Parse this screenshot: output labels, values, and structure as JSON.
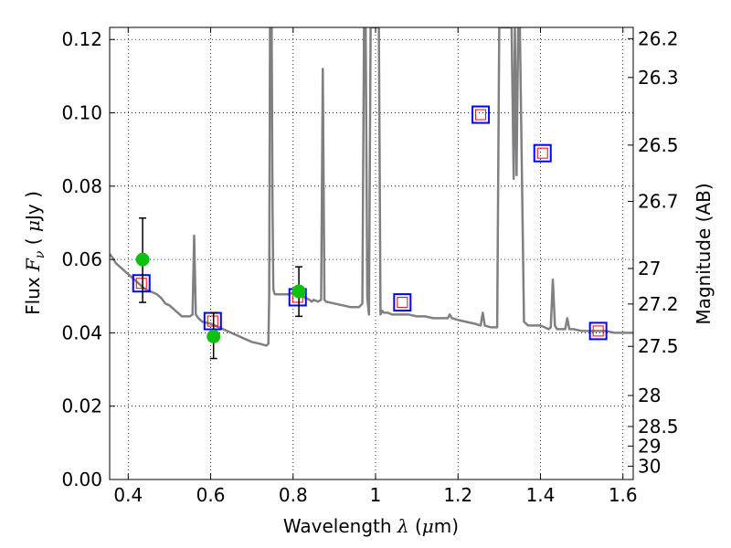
{
  "chart_data": {
    "type": "line",
    "title": "",
    "xlabel": {
      "text": "Wavelength",
      "symbol": "λ",
      "unit_open": " (",
      "unit_mu": "μ",
      "unit_rest": "m)"
    },
    "ylabel": {
      "text": "Flux",
      "symbol": "F",
      "symbol_sub": "ν",
      "unit_open": " ( ",
      "unit_mu": "μ",
      "unit_rest": "Jy )"
    },
    "y2label": "Magnitude (AB)",
    "xlim": [
      0.355,
      1.625
    ],
    "ylim": [
      0.0,
      0.1233
    ],
    "grid": true,
    "x_ticks": [
      0.4,
      0.6,
      0.8,
      1.0,
      1.2,
      1.4,
      1.6
    ],
    "x_tick_labels": [
      "0.4",
      "0.6",
      "0.8",
      "1",
      "1.2",
      "1.4",
      "1.6"
    ],
    "y_ticks": [
      0.0,
      0.02,
      0.04,
      0.06,
      0.08,
      0.1,
      0.12
    ],
    "y_tick_labels": [
      "0.00",
      "0.02",
      "0.04",
      "0.06",
      "0.08",
      "0.10",
      "0.12"
    ],
    "y2_ticks": [
      26.2,
      26.3,
      26.5,
      26.7,
      27,
      27.2,
      27.5,
      28,
      28.5,
      29,
      30
    ],
    "y2_tick_labels": [
      "26.2",
      "26.3",
      "26.5",
      "26.7",
      "27",
      "27.2",
      "27.5",
      "28",
      "28.5",
      "29",
      "30"
    ],
    "colors": {
      "spectrum": "#808080",
      "observed": "#10c010",
      "model_box": "#0000ff",
      "model_inner": "#ff0000",
      "errorbar": "#000000"
    },
    "series": [
      {
        "kind": "spectrum",
        "x": [
          0.355,
          0.362,
          0.37,
          0.38,
          0.39,
          0.4,
          0.41,
          0.42,
          0.43,
          0.44,
          0.45,
          0.46,
          0.47,
          0.48,
          0.49,
          0.5,
          0.51,
          0.52,
          0.53,
          0.54,
          0.55,
          0.556,
          0.56,
          0.564,
          0.57,
          0.58,
          0.6,
          0.62,
          0.64,
          0.66,
          0.68,
          0.7,
          0.72,
          0.735,
          0.74,
          0.742,
          0.744,
          0.746,
          0.748,
          0.75,
          0.752,
          0.754,
          0.756,
          0.76,
          0.77,
          0.78,
          0.79,
          0.8,
          0.81,
          0.82,
          0.83,
          0.84,
          0.845,
          0.85,
          0.86,
          0.868,
          0.872,
          0.876,
          0.88,
          0.9,
          0.92,
          0.94,
          0.96,
          0.968,
          0.972,
          0.976,
          0.98,
          0.984,
          0.988,
          0.992,
          0.996,
          1.0,
          1.004,
          1.008,
          1.012,
          1.016,
          1.02,
          1.03,
          1.04,
          1.06,
          1.08,
          1.1,
          1.12,
          1.14,
          1.16,
          1.175,
          1.18,
          1.185,
          1.2,
          1.22,
          1.24,
          1.255,
          1.26,
          1.265,
          1.28,
          1.295,
          1.3,
          1.302,
          1.31,
          1.32,
          1.33,
          1.335,
          1.338,
          1.342,
          1.346,
          1.35,
          1.36,
          1.37,
          1.38,
          1.39,
          1.4,
          1.41,
          1.42,
          1.425,
          1.43,
          1.435,
          1.44,
          1.45,
          1.46,
          1.465,
          1.47,
          1.475,
          1.48,
          1.5,
          1.52,
          1.54,
          1.56,
          1.58,
          1.6,
          1.625
        ],
        "y": [
          0.0615,
          0.0605,
          0.059,
          0.058,
          0.057,
          0.056,
          0.055,
          0.054,
          0.053,
          0.052,
          0.0515,
          0.051,
          0.0505,
          0.0495,
          0.048,
          0.0475,
          0.0465,
          0.0455,
          0.0445,
          0.0445,
          0.0445,
          0.045,
          0.0665,
          0.045,
          0.044,
          0.043,
          0.0425,
          0.0415,
          0.0405,
          0.0395,
          0.0385,
          0.0375,
          0.037,
          0.0365,
          0.037,
          0.05,
          0.1233,
          0.1233,
          0.1233,
          0.075,
          0.052,
          0.051,
          0.0505,
          0.0505,
          0.0505,
          0.0505,
          0.0505,
          0.051,
          0.0505,
          0.0505,
          0.0495,
          0.049,
          0.0485,
          0.049,
          0.0485,
          0.049,
          0.112,
          0.049,
          0.0485,
          0.048,
          0.0475,
          0.047,
          0.047,
          0.048,
          0.1233,
          0.1233,
          0.0495,
          0.045,
          0.1233,
          0.1233,
          0.1233,
          0.1233,
          0.1233,
          0.1233,
          0.045,
          0.046,
          0.0455,
          0.0455,
          0.045,
          0.045,
          0.045,
          0.0445,
          0.0445,
          0.044,
          0.044,
          0.044,
          0.045,
          0.044,
          0.0435,
          0.043,
          0.0425,
          0.042,
          0.0455,
          0.042,
          0.0415,
          0.0415,
          0.1233,
          0.1233,
          0.1233,
          0.1233,
          0.1233,
          0.082,
          0.1233,
          0.083,
          0.1233,
          0.1233,
          0.043,
          0.042,
          0.042,
          0.042,
          0.042,
          0.0415,
          0.041,
          0.0415,
          0.0545,
          0.042,
          0.041,
          0.041,
          0.041,
          0.044,
          0.041,
          0.041,
          0.041,
          0.0405,
          0.0405,
          0.0405,
          0.0405,
          0.04,
          0.04,
          0.04
        ]
      },
      {
        "kind": "observed",
        "x": [
          0.435,
          0.607,
          0.814
        ],
        "y": [
          0.06,
          0.039,
          0.0513
        ],
        "yerr_low": [
          0.0117,
          0.006,
          0.0068
        ],
        "yerr_high": [
          0.0113,
          0.0065,
          0.0067
        ]
      },
      {
        "kind": "model",
        "x": [
          0.432,
          0.605,
          0.811,
          1.065,
          1.255,
          1.405,
          1.54
        ],
        "y": [
          0.0535,
          0.0432,
          0.0497,
          0.0483,
          0.0995,
          0.089,
          0.0405
        ]
      }
    ]
  }
}
